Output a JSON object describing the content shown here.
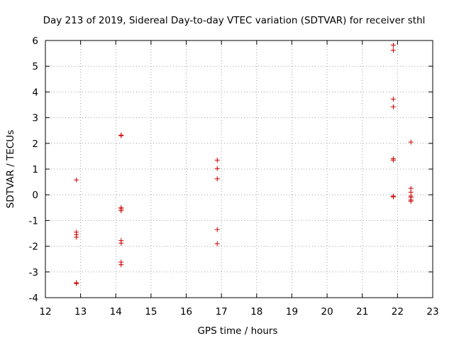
{
  "chart_data": {
    "type": "scatter",
    "title": "Day 213 of 2019, Sidereal Day-to-day VTEC variation (SDTVAR) for receiver sthl",
    "xlabel": "GPS time / hours",
    "ylabel": "SDTVAR / TECUs",
    "xlim": [
      12,
      23
    ],
    "ylim": [
      -4,
      6
    ],
    "xticks": [
      "12",
      "13",
      "14",
      "15",
      "16",
      "17",
      "18",
      "19",
      "20",
      "21",
      "22",
      "23"
    ],
    "yticks": [
      "-4",
      "-3",
      "-2",
      "-1",
      "0",
      "1",
      "2",
      "3",
      "4",
      "5",
      "6"
    ],
    "grid": true,
    "marker": "+",
    "color": "#cc0000",
    "series": [
      {
        "name": "SDTVAR",
        "points": [
          [
            12.88,
            0.58
          ],
          [
            12.88,
            -1.45
          ],
          [
            12.88,
            -1.55
          ],
          [
            12.88,
            -1.65
          ],
          [
            12.88,
            -3.42
          ],
          [
            12.88,
            -3.45
          ],
          [
            14.15,
            2.32
          ],
          [
            14.15,
            2.3
          ],
          [
            14.15,
            -0.5
          ],
          [
            14.15,
            -0.55
          ],
          [
            14.15,
            -0.62
          ],
          [
            14.15,
            -1.78
          ],
          [
            14.15,
            -1.88
          ],
          [
            14.15,
            -2.62
          ],
          [
            14.15,
            -2.72
          ],
          [
            16.88,
            1.35
          ],
          [
            16.88,
            1.02
          ],
          [
            16.88,
            0.62
          ],
          [
            16.88,
            -1.35
          ],
          [
            16.88,
            -1.9
          ],
          [
            21.88,
            5.82
          ],
          [
            21.88,
            5.62
          ],
          [
            21.88,
            3.72
          ],
          [
            21.88,
            3.42
          ],
          [
            21.88,
            1.4
          ],
          [
            21.88,
            1.35
          ],
          [
            21.88,
            -0.05
          ],
          [
            21.88,
            -0.08
          ],
          [
            22.38,
            2.05
          ],
          [
            22.38,
            0.25
          ],
          [
            22.38,
            0.1
          ],
          [
            22.38,
            -0.05
          ],
          [
            22.38,
            -0.1
          ],
          [
            22.38,
            -0.2
          ],
          [
            22.38,
            -0.25
          ]
        ]
      }
    ]
  }
}
